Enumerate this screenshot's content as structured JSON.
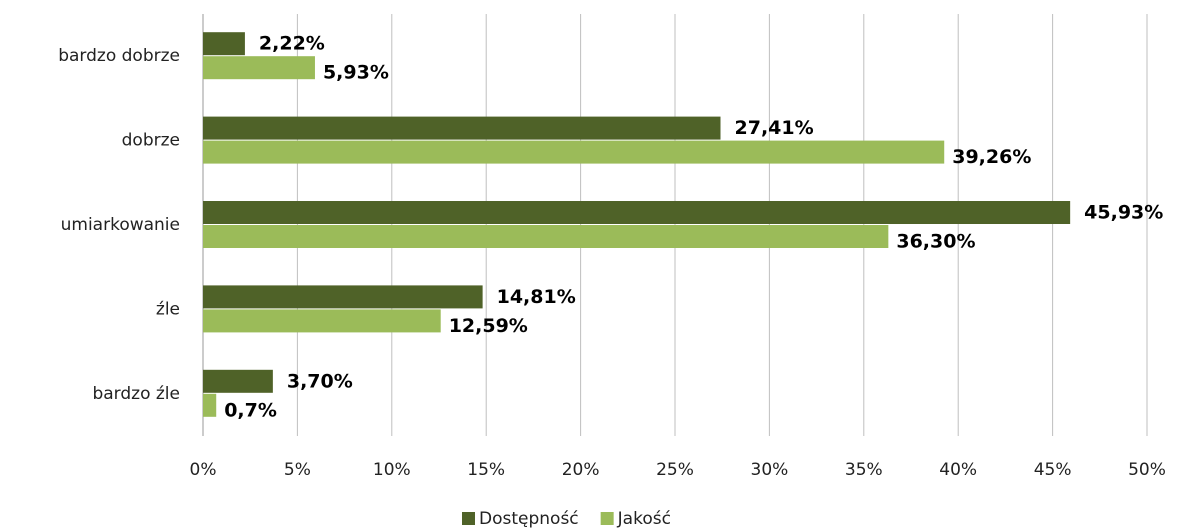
{
  "chart_data": {
    "type": "bar",
    "orientation": "horizontal",
    "categories": [
      "bardzo dobrze",
      "dobrze",
      "umiarkowanie",
      "źle",
      "bardzo źle"
    ],
    "series": [
      {
        "name": "Dostępność",
        "color": "#4f6228",
        "values": [
          2.22,
          27.41,
          45.93,
          14.81,
          3.7
        ],
        "value_labels": [
          "2,22%",
          "27,41%",
          "45,93%",
          "14,81%",
          "3,70%"
        ]
      },
      {
        "name": "Jakość",
        "color": "#9bbb59",
        "values": [
          5.93,
          39.26,
          36.3,
          12.59,
          0.7
        ],
        "value_labels": [
          "5,93%",
          "39,26%",
          "36,30%",
          "12,59%",
          "0,7%"
        ]
      }
    ],
    "xlim": [
      0,
      50
    ],
    "xticks": [
      {
        "value": 0,
        "label": "0%"
      },
      {
        "value": 5,
        "label": "5%"
      },
      {
        "value": 10,
        "label": "10%"
      },
      {
        "value": 15,
        "label": "15%"
      },
      {
        "value": 20,
        "label": "20%"
      },
      {
        "value": 25,
        "label": "25%"
      },
      {
        "value": 30,
        "label": "30%"
      },
      {
        "value": 35,
        "label": "35%"
      },
      {
        "value": 40,
        "label": "40%"
      },
      {
        "value": 45,
        "label": "45%"
      },
      {
        "value": 50,
        "label": "50%"
      }
    ],
    "grid": true,
    "legend": "bottom"
  }
}
